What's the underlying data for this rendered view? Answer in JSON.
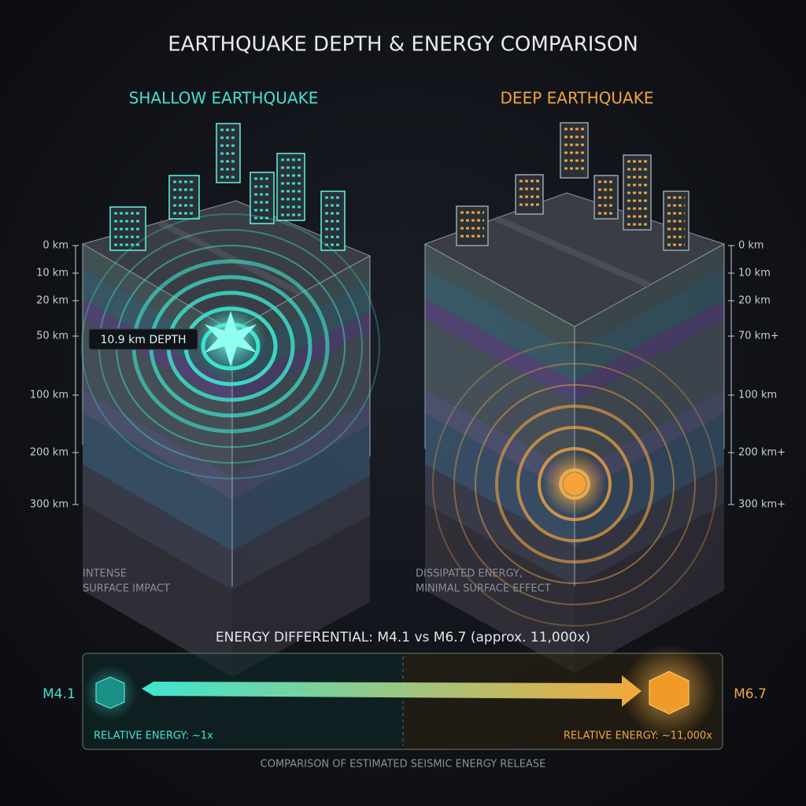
{
  "title": "EARTHQUAKE DEPTH & ENERGY COMPARISON",
  "shallow": {
    "title": "SHALLOW EARTHQUAKE",
    "depths": [
      "0 km",
      "10 km",
      "20 km",
      "50 km",
      "100 km",
      "200 km",
      "300 km"
    ],
    "callout": "10.9 km DEPTH",
    "caption": [
      "INTENSE",
      "SURFACE IMPACT"
    ]
  },
  "deep": {
    "title": "DEEP EARTHQUAKE",
    "depths": [
      "0 km",
      "10 km",
      "20 km",
      "70 km+",
      "100 km",
      "200 km+",
      "300 km+"
    ],
    "caption": [
      "DISSIPATED ENERGY,",
      "MINIMAL SURFACE EFFECT"
    ]
  },
  "energy": {
    "title": "ENERGY DIFFERENTIAL: M4.1 vs M6.7 (approx. 11,000x)",
    "left_label": "M4.1",
    "right_label": "M6.7",
    "left_energy": "RELATIVE ENERGY: ~1x",
    "right_energy": "RELATIVE ENERGY: ~11,000x",
    "footer": "COMPARISON OF ESTIMATED SEISMIC ENERGY RELEASE"
  }
}
